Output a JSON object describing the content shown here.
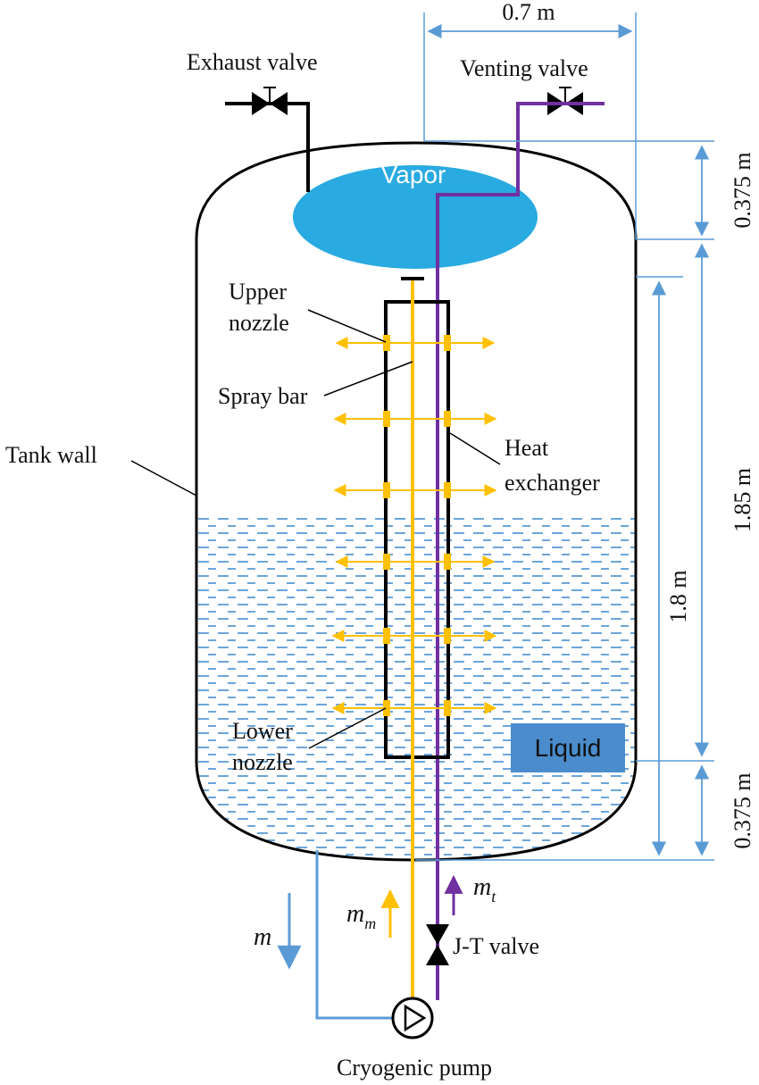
{
  "labels": {
    "exhaust_valve": "Exhaust valve",
    "venting_valve": "Venting valve",
    "vapor": "Vapor",
    "upper_nozzle_line1": "Upper",
    "upper_nozzle_line2": "nozzle",
    "spray_bar": "Spray bar",
    "heat_exchanger_line1": "Heat",
    "heat_exchanger_line2": "exchanger",
    "tank_wall": "Tank wall",
    "lower_nozzle_line1": "Lower",
    "lower_nozzle_line2": "nozzle",
    "liquid": "Liquid",
    "jt_valve": "J-T valve",
    "cryogenic_pump": "Cryogenic pump",
    "flow_m": "m",
    "flow_mm": "m",
    "flow_mm_sub": "m",
    "flow_mt": "m",
    "flow_mt_sub": "t"
  },
  "dimensions": {
    "width": "0.7 m",
    "top_head_height": "0.375 m",
    "cylinder_height": "1.85 m",
    "bottom_head_height": "0.375 m",
    "liquid_region_height": "1.8 m"
  },
  "colors": {
    "tank_wall": "#000000",
    "vapor": "#29aae1",
    "liquid_dash": "#5b9bd5",
    "liquid_box": "#4a8ccc",
    "spray_bar": "#ffc000",
    "heat_exchanger": "#7030a0",
    "dimension_line": "#5b9bd5",
    "pump_line": "#5b9bd5"
  }
}
